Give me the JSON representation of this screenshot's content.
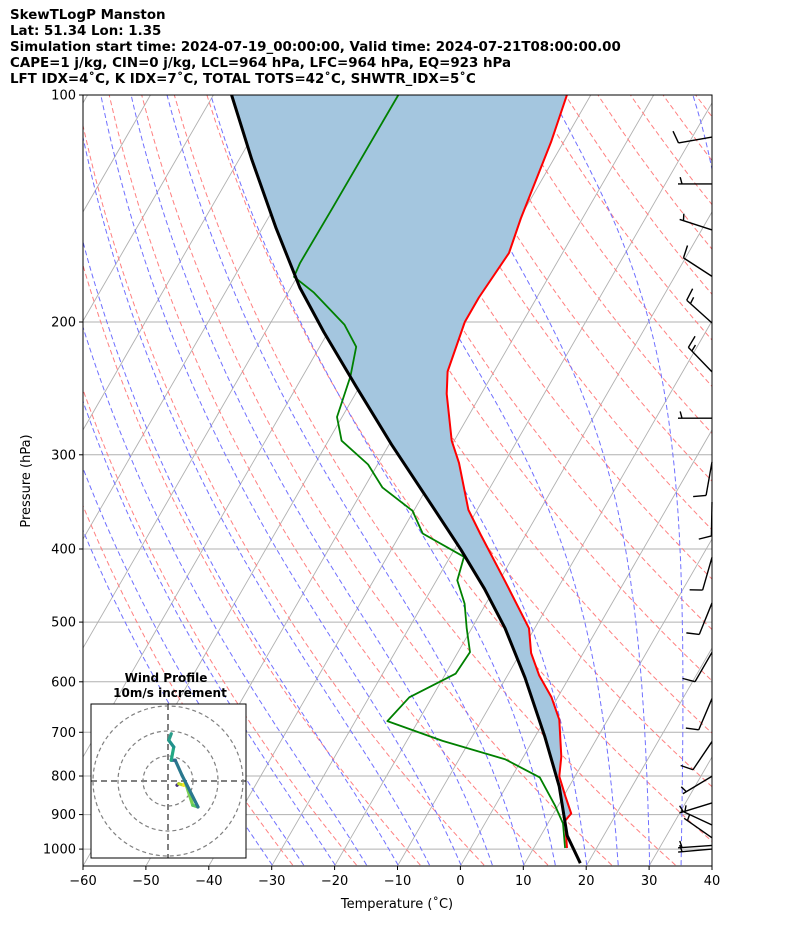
{
  "header": {
    "line1": "SkewTLogP Manston",
    "line2": "Lat: 51.34   Lon: 1.35",
    "line3": "Simulation start time: 2024-07-19_00:00:00, Valid time: 2024-07-21T08:00:00.00",
    "line4": "CAPE=1 j/kg, CIN=0 j/kg, LCL=964 hPa, LFC=964 hPa, EQ=923 hPa",
    "line5": "LFT IDX=4˚C, K IDX=7˚C, TOTAL TOTS=42˚C, SHWTR_IDX=5˚C"
  },
  "chart_data": {
    "type": "line",
    "subtype": "skew-t log-p",
    "xlabel": "Temperature (˚C)",
    "ylabel": "Pressure (hPa)",
    "xlim": [
      -60,
      40
    ],
    "ylim": [
      1050,
      100
    ],
    "yscale": "log",
    "grid": true,
    "xticks": [
      -60,
      -50,
      -40,
      -30,
      -20,
      -10,
      0,
      10,
      20,
      30,
      40
    ],
    "xtick_labels": [
      "−60",
      "−50",
      "−40",
      "−30",
      "−20",
      "−10",
      "0",
      "10",
      "20",
      "30",
      "40"
    ],
    "yticks": [
      100,
      200,
      300,
      400,
      500,
      600,
      700,
      800,
      900,
      1000
    ],
    "ytick_labels": [
      "100",
      "200",
      "300",
      "400",
      "500",
      "600",
      "700",
      "800",
      "900",
      "1000"
    ],
    "colors": {
      "temperature": "#ff0000",
      "dewpoint": "#008000",
      "parcel": "#000000",
      "fill": "#a4c6df",
      "isotherm": "#b0b0b0",
      "dry_adiabat": "#ff8080",
      "moist_adiabat": "#7070ff"
    },
    "series": [
      {
        "name": "temperature",
        "points": [
          [
            996.6,
            15.3
          ],
          [
            917.6,
            12.5
          ],
          [
            897,
            12.8
          ],
          [
            851,
            10.3
          ],
          [
            801,
            7.5
          ],
          [
            754,
            6.0
          ],
          [
            673.6,
            2.3
          ],
          [
            629,
            -1.0
          ],
          [
            588,
            -5.0
          ],
          [
            549.5,
            -8.3
          ],
          [
            509.5,
            -10.9
          ],
          [
            441.5,
            -19.0
          ],
          [
            382.7,
            -27.2
          ],
          [
            354.9,
            -31.4
          ],
          [
            307.5,
            -37.2
          ],
          [
            287.4,
            -40.4
          ],
          [
            249,
            -45.5
          ],
          [
            232.6,
            -47.4
          ],
          [
            200,
            -49.2
          ],
          [
            185.6,
            -49.2
          ],
          [
            162,
            -48.5
          ],
          [
            145.8,
            -49.8
          ],
          [
            115.4,
            -52.0
          ],
          [
            100,
            -53.8
          ]
        ]
      },
      {
        "name": "dewpoint",
        "points": [
          [
            996.6,
            15.0
          ],
          [
            924.4,
            12.4
          ],
          [
            877,
            9.6
          ],
          [
            803.4,
            4.5
          ],
          [
            760,
            -2.7
          ],
          [
            718.7,
            -14.3
          ],
          [
            676.5,
            -24.9
          ],
          [
            629,
            -23.6
          ],
          [
            585.3,
            -18.4
          ],
          [
            547.9,
            -18.1
          ],
          [
            509.5,
            -20.8
          ],
          [
            472.6,
            -23.4
          ],
          [
            440.2,
            -26.7
          ],
          [
            409.6,
            -27.8
          ],
          [
            381.5,
            -36.5
          ],
          [
            356,
            -40.2
          ],
          [
            331.6,
            -47.1
          ],
          [
            309,
            -51.5
          ],
          [
            287.4,
            -57.9
          ],
          [
            267.3,
            -60.8
          ],
          [
            236.2,
            -62.4
          ],
          [
            215.7,
            -64.2
          ],
          [
            201.6,
            -68.1
          ],
          [
            182.8,
            -75.9
          ],
          [
            174.2,
            -80.5
          ],
          [
            167,
            -80.8
          ],
          [
            141.5,
            -80.7
          ],
          [
            100,
            -80.6
          ]
        ]
      },
      {
        "name": "parcel",
        "points": [
          [
            1044,
            18.8
          ],
          [
            960,
            14.2
          ],
          [
            825.6,
            8.4
          ],
          [
            710,
            1.6
          ],
          [
            592.6,
            -7.0
          ],
          [
            509.5,
            -14.7
          ],
          [
            451.7,
            -21.6
          ],
          [
            400.4,
            -29.0
          ],
          [
            344.3,
            -38.7
          ],
          [
            291.7,
            -49.4
          ],
          [
            243.4,
            -60.6
          ],
          [
            206.2,
            -70.7
          ],
          [
            180,
            -78.6
          ],
          [
            150.2,
            -87.8
          ],
          [
            121.7,
            -98.0
          ],
          [
            100,
            -107.1
          ]
        ]
      }
    ],
    "shaded_region": {
      "between": [
        "parcel",
        "temperature"
      ],
      "from_hpa": 960,
      "to_hpa": 100
    },
    "wind_barbs": [
      {
        "p": 113.7,
        "dir": 260,
        "speed_kt": 10
      },
      {
        "p": 131.2,
        "dir": 270,
        "speed_kt": 5
      },
      {
        "p": 151,
        "dir": 288,
        "speed_kt": 5
      },
      {
        "p": 174,
        "dir": 303,
        "speed_kt": 10
      },
      {
        "p": 200.6,
        "dir": 312,
        "speed_kt": 15
      },
      {
        "p": 232.9,
        "dir": 316,
        "speed_kt": 15
      },
      {
        "p": 268.3,
        "dir": 270,
        "speed_kt": 5
      },
      {
        "p": 306.6,
        "dir": 190,
        "speed_kt": 10
      },
      {
        "p": 346.5,
        "dir": 181,
        "speed_kt": 10
      },
      {
        "p": 410.3,
        "dir": 196,
        "speed_kt": 10
      },
      {
        "p": 471.6,
        "dir": 202,
        "speed_kt": 10
      },
      {
        "p": 548.3,
        "dir": 210,
        "speed_kt": 10
      },
      {
        "p": 631.5,
        "dir": 203,
        "speed_kt": 10
      },
      {
        "p": 720.1,
        "dir": 214,
        "speed_kt": 10
      },
      {
        "p": 800.5,
        "dir": 239,
        "speed_kt": 5
      },
      {
        "p": 868.6,
        "dir": 253,
        "speed_kt": 5
      },
      {
        "p": 929,
        "dir": 295,
        "speed_kt": 5
      },
      {
        "p": 966,
        "dir": 305,
        "speed_kt": 5
      },
      {
        "p": 989,
        "dir": 266,
        "speed_kt": 5
      },
      {
        "p": 1000,
        "dir": 265,
        "speed_kt": 5
      }
    ],
    "hodograph": {
      "title": "Wind Profile",
      "subtitle": "10m/s increment",
      "ring_increment_ms": 10,
      "points": [
        {
          "u": 3.6,
          "v": -1.7,
          "color": "#440154"
        },
        {
          "u": 4.3,
          "v": -1.1,
          "color": "#46327e"
        },
        {
          "u": 6.3,
          "v": -1.7,
          "color": "#bddf26"
        },
        {
          "u": 6.9,
          "v": -0.4,
          "color": "#fde725"
        },
        {
          "u": 9.9,
          "v": -9.7,
          "color": "#7ad151"
        },
        {
          "u": 12.0,
          "v": -10.4,
          "color": "#5ec962"
        },
        {
          "u": 5.6,
          "v": 2.3,
          "color": "#2a788e"
        },
        {
          "u": 2.9,
          "v": 8.3,
          "color": "#2a788e"
        },
        {
          "u": 1.3,
          "v": 8.3,
          "color": "#31688e"
        },
        {
          "u": 2.3,
          "v": 13.6,
          "color": "#22a884"
        },
        {
          "u": 0.3,
          "v": 16.3,
          "color": "#21918c"
        },
        {
          "u": 1.3,
          "v": 18.9,
          "color": "#2a9d8a"
        }
      ]
    }
  }
}
